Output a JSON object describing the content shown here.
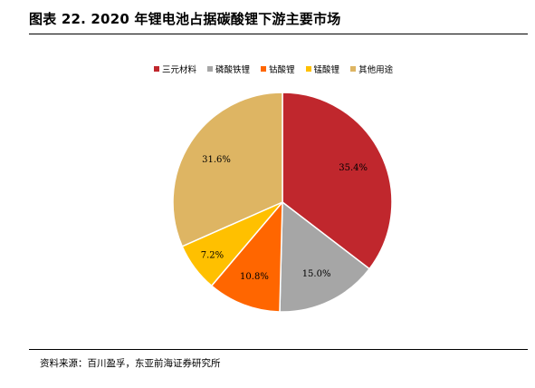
{
  "title": "图表 22. 2020 年锂电池占据碳酸锂下游主要市场",
  "source": "资料来源：百川盈孚，东亚前海证券研究所",
  "chart_data": {
    "type": "pie",
    "title": "",
    "legend_position": "top",
    "categories": [
      "三元材料",
      "磷酸铁锂",
      "钴酸锂",
      "锰酸锂",
      "其他用途"
    ],
    "values": [
      35.4,
      15.0,
      10.8,
      7.2,
      31.6
    ],
    "value_labels": [
      "35.4%",
      "15.0%",
      "10.8%",
      "7.2%",
      "31.6%"
    ],
    "colors": [
      "#C0272D",
      "#A6A6A6",
      "#FF6600",
      "#FFC000",
      "#DEB563"
    ]
  }
}
